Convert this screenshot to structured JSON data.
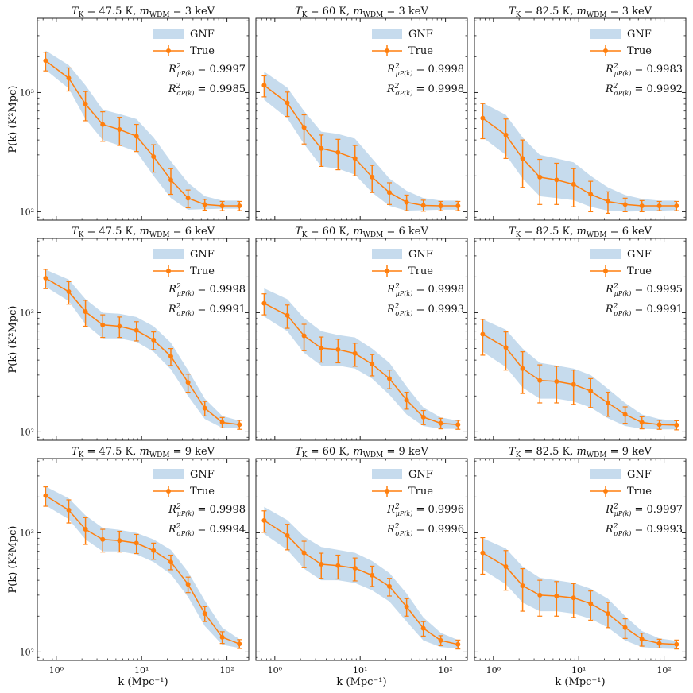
{
  "chart_data": {
    "type": "line",
    "x": [
      0.75,
      1.4,
      2.2,
      3.5,
      5.5,
      8.7,
      13.8,
      22,
      35,
      55,
      88,
      140
    ],
    "xlabel": "k (Mpc⁻¹)",
    "ylabel": "P(k) (K²Mpc)",
    "xscale": "log",
    "yscale": "log",
    "xlim": [
      0.6,
      180
    ],
    "ylim": [
      85,
      4200
    ],
    "x_ticks": [
      {
        "value": 1,
        "label": "10⁰"
      },
      {
        "value": 10,
        "label": "10¹"
      },
      {
        "value": 100,
        "label": "10²"
      }
    ],
    "y_ticks": [
      {
        "value": 100,
        "label": "10²"
      },
      {
        "value": 1000,
        "label": "10³"
      }
    ],
    "legend": {
      "placement": "top-right",
      "entries": [
        "GNF",
        "True"
      ]
    },
    "colors": {
      "band": "#c6dbed",
      "line": "#ff7f0e"
    },
    "panels": [
      {
        "title": "T_K = 47.5 K, m_WDM = 3 keV",
        "title_parts": [
          "T",
          "K",
          " = 47.5 K, ",
          "m",
          "WDM",
          " = 3 keV"
        ],
        "series": [
          {
            "name": "True",
            "values": [
              1850,
              1320,
              800,
              540,
              490,
              430,
              290,
              185,
              130,
              115,
              112,
              112
            ],
            "errors": [
              330,
              290,
              220,
              150,
              130,
              110,
              75,
              45,
              22,
              12,
              10,
              10
            ]
          }
        ],
        "gnf_band": {
          "lower": [
            1550,
            1080,
            600,
            400,
            360,
            320,
            200,
            130,
            104,
            105,
            106,
            106
          ],
          "upper": [
            2250,
            1700,
            1150,
            720,
            660,
            600,
            420,
            265,
            175,
            135,
            124,
            124
          ]
        },
        "r2_mu": "0.9997",
        "r2_sigma": "0.9985"
      },
      {
        "title": "T_K = 60 K, m_WDM = 3 keV",
        "title_parts": [
          "T",
          "K",
          " = 60 K, ",
          "m",
          "WDM",
          " = 3 keV"
        ],
        "series": [
          {
            "name": "True",
            "values": [
              1150,
              820,
              510,
              340,
              315,
              280,
              195,
              145,
              120,
              113,
              112,
              112
            ],
            "errors": [
              230,
              190,
              140,
              100,
              90,
              80,
              50,
              30,
              18,
              12,
              10,
              10
            ]
          }
        ],
        "gnf_band": {
          "lower": [
            870,
            610,
            370,
            240,
            230,
            205,
            145,
            112,
            102,
            103,
            104,
            104
          ],
          "upper": [
            1500,
            1100,
            700,
            470,
            450,
            410,
            280,
            190,
            150,
            130,
            124,
            124
          ]
        },
        "r2_mu": "0.9998",
        "r2_sigma": "0.9998"
      },
      {
        "title": "T_K = 82.5 K, m_WDM = 3 keV",
        "title_parts": [
          "T",
          "K",
          " = 82.5 K, ",
          "m",
          "WDM",
          " = 3 keV"
        ],
        "series": [
          {
            "name": "True",
            "values": [
              610,
              440,
              280,
              195,
              185,
              170,
              140,
              122,
              115,
              112,
              112,
              112
            ],
            "errors": [
              200,
              160,
              120,
              80,
              70,
              60,
              40,
              25,
              15,
              12,
              10,
              10
            ]
          }
        ],
        "gnf_band": {
          "lower": [
            420,
            300,
            190,
            135,
            130,
            125,
            110,
            102,
            100,
            101,
            102,
            103
          ],
          "upper": [
            820,
            650,
            420,
            300,
            280,
            260,
            200,
            160,
            138,
            128,
            124,
            124
          ]
        },
        "r2_mu": "0.9983",
        "r2_sigma": "0.9992"
      },
      {
        "title": "T_K = 47.5 K, m_WDM = 6 keV",
        "title_parts": [
          "T",
          "K",
          " = 47.5 K, ",
          "m",
          "WDM",
          " = 6 keV"
        ],
        "series": [
          {
            "name": "True",
            "values": [
              1950,
              1500,
              1020,
              790,
              770,
              710,
              590,
              430,
              260,
              158,
              120,
              115
            ],
            "errors": [
              360,
              320,
              250,
              170,
              150,
              130,
              100,
              70,
              45,
              22,
              12,
              10
            ]
          }
        ],
        "gnf_band": {
          "lower": [
            1650,
            1250,
            800,
            610,
            610,
            570,
            470,
            335,
            200,
            128,
            108,
            108
          ],
          "upper": [
            2300,
            1900,
            1300,
            1000,
            980,
            920,
            770,
            560,
            330,
            190,
            136,
            124
          ]
        },
        "r2_mu": "0.9998",
        "r2_sigma": "0.9991"
      },
      {
        "title": "T_K = 60 K, m_WDM = 6 keV",
        "title_parts": [
          "T",
          "K",
          " = 60 K, ",
          "m",
          "WDM",
          " = 6 keV"
        ],
        "series": [
          {
            "name": "True",
            "values": [
              1200,
              950,
              640,
              505,
              490,
              455,
              370,
              280,
              185,
              133,
              118,
              115
            ],
            "errors": [
              240,
              210,
              160,
              120,
              110,
              100,
              75,
              50,
              30,
              18,
              12,
              10
            ]
          }
        ],
        "gnf_band": {
          "lower": [
            930,
            700,
            460,
            360,
            360,
            340,
            280,
            205,
            140,
            112,
            106,
            106
          ],
          "upper": [
            1600,
            1300,
            900,
            700,
            650,
            620,
            500,
            380,
            240,
            160,
            132,
            124
          ]
        },
        "r2_mu": "0.9998",
        "r2_sigma": "0.9993"
      },
      {
        "title": "T_K = 82.5 K, m_WDM = 6 keV",
        "title_parts": [
          "T",
          "K",
          " = 82.5 K, ",
          "m",
          "WDM",
          " = 6 keV"
        ],
        "series": [
          {
            "name": "True",
            "values": [
              660,
              510,
              340,
              270,
              265,
              250,
              220,
              175,
              140,
              120,
              115,
              114
            ],
            "errors": [
              220,
              180,
              130,
              95,
              90,
              80,
              60,
              40,
              22,
              14,
              10,
              10
            ]
          }
        ],
        "gnf_band": {
          "lower": [
            470,
            350,
            235,
            190,
            190,
            180,
            160,
            130,
            112,
            106,
            105,
            105
          ],
          "upper": [
            880,
            720,
            500,
            380,
            360,
            340,
            300,
            230,
            175,
            140,
            128,
            124
          ]
        },
        "r2_mu": "0.9995",
        "r2_sigma": "0.9991"
      },
      {
        "title": "T_K = 47.5 K, m_WDM = 9 keV",
        "title_parts": [
          "T",
          "K",
          " = 47.5 K, ",
          "m",
          "WDM",
          " = 9 keV"
        ],
        "series": [
          {
            "name": "True",
            "values": [
              2050,
              1550,
              1070,
              880,
              860,
              820,
              710,
              570,
              370,
              210,
              133,
              117
            ],
            "errors": [
              380,
              340,
              270,
              190,
              170,
              150,
              110,
              80,
              55,
              30,
              15,
              10
            ]
          }
        ],
        "gnf_band": {
          "lower": [
            1700,
            1300,
            880,
            700,
            700,
            660,
            570,
            450,
            290,
            165,
            115,
            108
          ],
          "upper": [
            2450,
            1950,
            1400,
            1100,
            1060,
            1000,
            880,
            720,
            470,
            270,
            160,
            128
          ]
        },
        "r2_mu": "0.9998",
        "r2_sigma": "0.9994"
      },
      {
        "title": "T_K = 60 K, m_WDM = 9 keV",
        "title_parts": [
          "T",
          "K",
          " = 60 K, ",
          "m",
          "WDM",
          " = 9 keV"
        ],
        "series": [
          {
            "name": "True",
            "values": [
              1270,
              950,
              680,
              545,
              530,
              505,
              440,
              355,
              240,
              158,
              125,
              116
            ],
            "errors": [
              260,
              230,
              170,
              130,
              120,
              110,
              85,
              60,
              40,
              22,
              12,
              10
            ]
          }
        ],
        "gnf_band": {
          "lower": [
            980,
            720,
            500,
            400,
            400,
            380,
            330,
            265,
            180,
            125,
            110,
            107
          ],
          "upper": [
            1650,
            1280,
            930,
            760,
            720,
            680,
            580,
            460,
            310,
            195,
            145,
            126
          ]
        },
        "r2_mu": "0.9996",
        "r2_sigma": "0.9996"
      },
      {
        "title": "T_K = 82.5 K, m_WDM = 9 keV",
        "title_parts": [
          "T",
          "K",
          " = 82.5 K, ",
          "m",
          "WDM",
          " = 9 keV"
        ],
        "series": [
          {
            "name": "True",
            "values": [
              680,
              520,
              360,
              300,
              295,
              285,
              255,
              210,
              160,
              128,
              118,
              116
            ],
            "errors": [
              230,
              190,
              140,
              100,
              95,
              90,
              70,
              50,
              30,
              16,
              10,
              10
            ]
          }
        ],
        "gnf_band": {
          "lower": [
            490,
            370,
            260,
            220,
            220,
            210,
            190,
            160,
            125,
            110,
            107,
            106
          ],
          "upper": [
            900,
            740,
            520,
            420,
            400,
            380,
            340,
            280,
            200,
            150,
            130,
            124
          ]
        },
        "r2_mu": "0.9997",
        "r2_sigma": "0.9993"
      }
    ]
  }
}
